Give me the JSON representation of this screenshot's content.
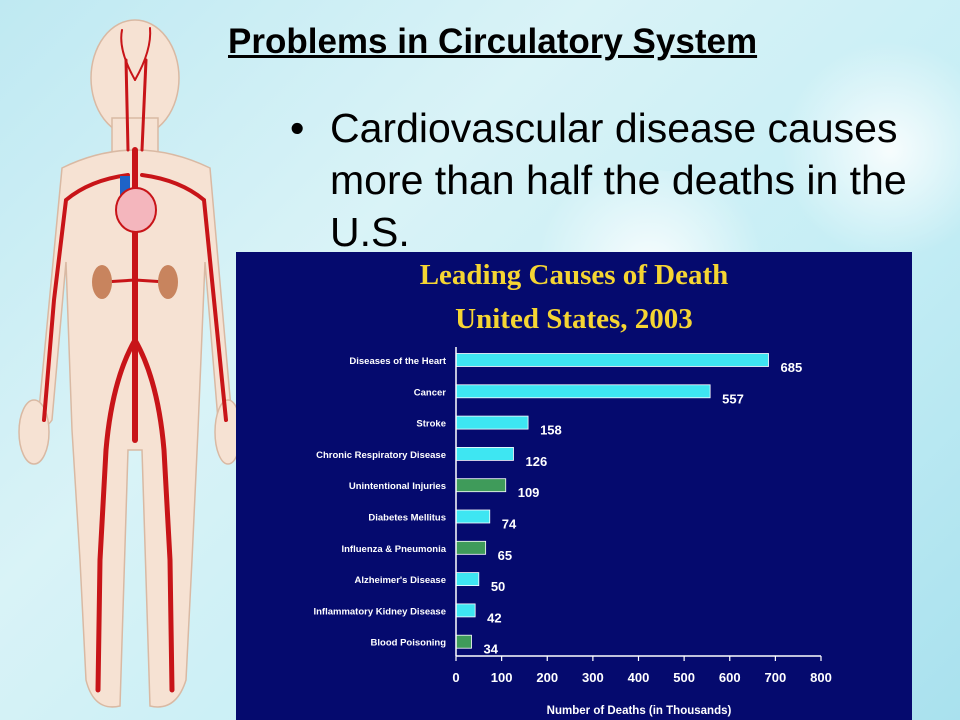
{
  "slide": {
    "title": "Problems in Circulatory System",
    "bullet": "Cardiovascular disease causes more than half the deaths in the U.S."
  },
  "illustration": {
    "icon": "human-circulatory-system"
  },
  "chart_data": {
    "type": "bar",
    "orientation": "horizontal",
    "title": "Leading Causes of Death",
    "subtitle": "United States, 2003",
    "xlabel": "Number of Deaths (in Thousands)",
    "ylabel": "",
    "xlim": [
      0,
      800
    ],
    "xticks": [
      "0",
      "100",
      "200",
      "300",
      "400",
      "500",
      "600",
      "700",
      "800"
    ],
    "grid": false,
    "categories": [
      "Diseases of the Heart",
      "Cancer",
      "Stroke",
      "Chronic Respiratory Disease",
      "Unintentional Injuries",
      "Diabetes Mellitus",
      "Influenza & Pneumonia",
      "Alzheimer's Disease",
      "Inflammatory Kidney Disease",
      "Blood Poisoning"
    ],
    "values": [
      685,
      557,
      158,
      126,
      109,
      74,
      65,
      50,
      42,
      34
    ],
    "bar_colors": [
      "#3ee6f2",
      "#3ee6f2",
      "#3ee6f2",
      "#3ee6f2",
      "#3f9b5a",
      "#3ee6f2",
      "#3f9b5a",
      "#3ee6f2",
      "#3ee6f2",
      "#3f9b5a"
    ],
    "colors": {
      "background": "#050a6e",
      "title": "#f5d533",
      "text": "#ffffff"
    }
  }
}
